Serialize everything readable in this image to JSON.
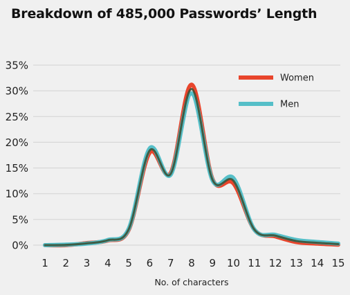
{
  "chart_data": {
    "type": "line",
    "title": "Breakdown of 485,000 Passwords’ Length",
    "xlabel": "No. of characters",
    "ylabel": "",
    "x": [
      1,
      2,
      3,
      4,
      5,
      6,
      7,
      8,
      9,
      10,
      11,
      12,
      13,
      14,
      15
    ],
    "xlim": [
      1,
      15
    ],
    "ylim": [
      0,
      35
    ],
    "y_ticks": [
      "0%",
      "5%",
      "10%",
      "15%",
      "20%",
      "25%",
      "30%",
      "35%"
    ],
    "x_ticks": [
      "1",
      "2",
      "3",
      "4",
      "5",
      "6",
      "7",
      "8",
      "9",
      "10",
      "11",
      "12",
      "13",
      "14",
      "15"
    ],
    "grid": true,
    "legend_position": "top-right",
    "series": [
      {
        "name": "Women",
        "color": "#e8452c",
        "values": [
          0.0,
          0.0,
          0.4,
          0.9,
          3.0,
          18.0,
          14.0,
          31.2,
          12.8,
          12.0,
          3.0,
          1.7,
          0.6,
          0.3,
          0.1
        ]
      },
      {
        "name": "Men",
        "color": "#56bfc8",
        "values": [
          0.0,
          0.1,
          0.3,
          1.0,
          3.2,
          18.8,
          13.7,
          29.5,
          12.6,
          13.0,
          3.0,
          2.0,
          1.0,
          0.6,
          0.3
        ]
      }
    ]
  }
}
